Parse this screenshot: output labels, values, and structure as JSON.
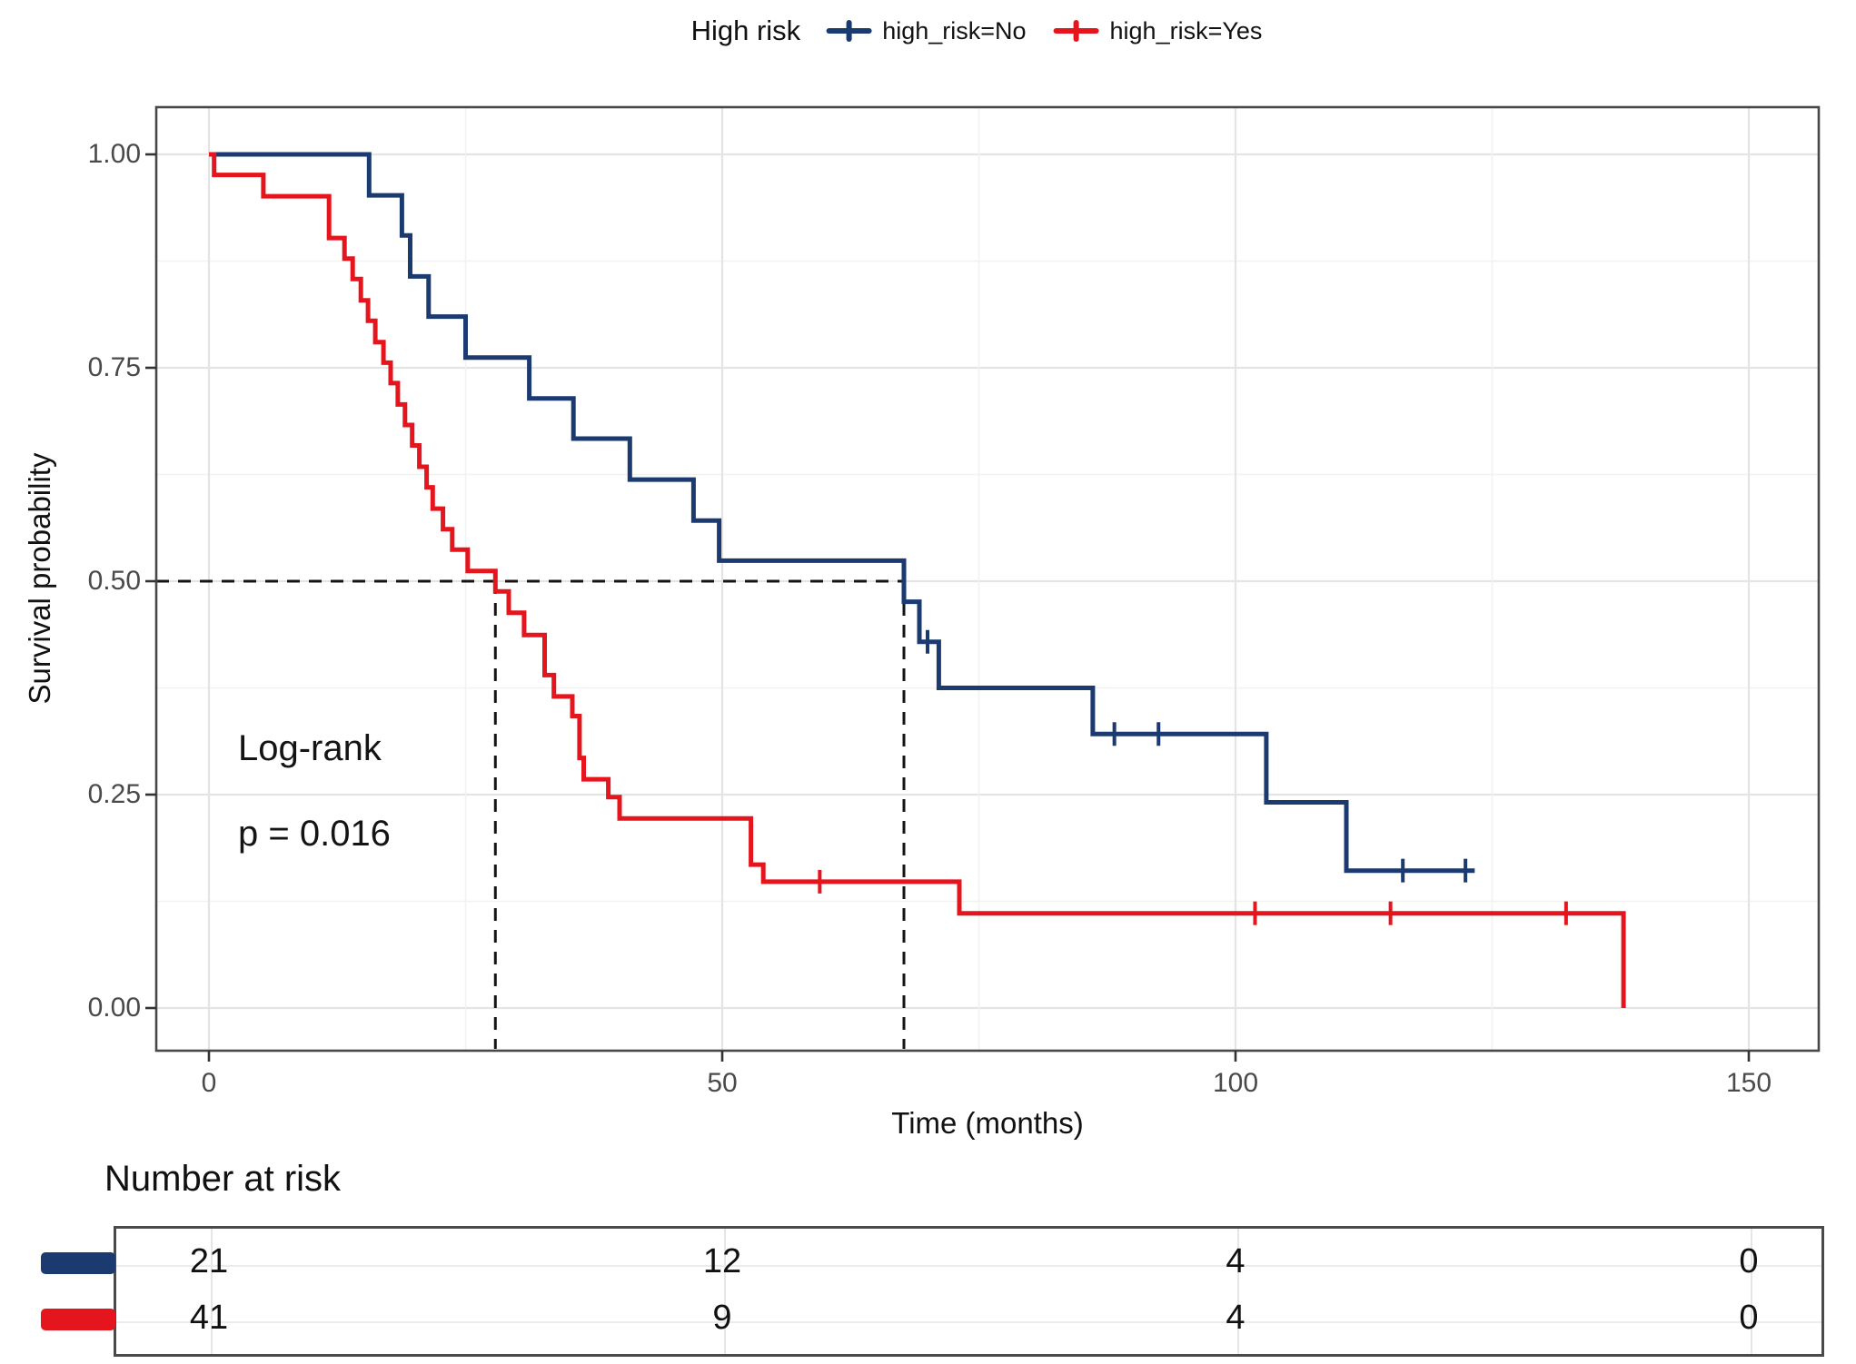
{
  "legend": {
    "title": "High risk",
    "entries": [
      {
        "label": "high_risk=No",
        "color": "#1a3a70"
      },
      {
        "label": "high_risk=Yes",
        "color": "#e4151d"
      }
    ]
  },
  "annotation": {
    "line1": "Log-rank",
    "line2": "p = 0.016"
  },
  "risk_table": {
    "title": "Number at risk",
    "time_points": [
      0,
      50,
      100,
      150
    ],
    "rows": [
      {
        "group": "high_risk=No",
        "color": "#1a3a70",
        "values": [
          "21",
          "12",
          "4",
          "0"
        ]
      },
      {
        "group": "high_risk=Yes",
        "color": "#e4151d",
        "values": [
          "41",
          "9",
          "4",
          "0"
        ]
      }
    ]
  },
  "chart_data": {
    "type": "line",
    "subtype": "kaplan-meier-step",
    "title": "High risk",
    "xlabel": "Time (months)",
    "ylabel": "Survival probability",
    "xlim": [
      0,
      150
    ],
    "ylim": [
      0,
      1
    ],
    "x_ticks": [
      0,
      50,
      100,
      150
    ],
    "y_ticks": [
      0,
      0.25,
      0.5,
      0.75,
      1
    ],
    "y_tick_labels": [
      "0.00",
      "0.25",
      "0.50",
      "0.75",
      "1.00"
    ],
    "grid": "major+minor",
    "legend_position": "top",
    "statistics": {
      "test": "Log-rank",
      "p_value": "0.016"
    },
    "median_lines": {
      "y": 0.5,
      "x_values": [
        27.9,
        67.7
      ],
      "style": "dashed"
    },
    "series": [
      {
        "name": "high_risk=No",
        "color": "#1a3a70",
        "n_at_start": 21,
        "steps": [
          [
            0,
            1.0
          ],
          [
            15.6,
            0.952
          ],
          [
            18.8,
            0.905
          ],
          [
            19.6,
            0.857
          ],
          [
            21.4,
            0.81
          ],
          [
            25,
            0.762
          ],
          [
            31.2,
            0.714
          ],
          [
            35.5,
            0.667
          ],
          [
            41,
            0.619
          ],
          [
            47.2,
            0.571
          ],
          [
            49.7,
            0.524
          ],
          [
            67.7,
            0.476
          ],
          [
            69.2,
            0.429
          ],
          [
            71.1,
            0.375
          ],
          [
            86.1,
            0.321
          ],
          [
            103,
            0.241
          ],
          [
            110.8,
            0.161
          ],
          [
            123.3,
            0.161
          ]
        ],
        "censor_marks": [
          [
            70,
            0.429
          ],
          [
            88.2,
            0.321
          ],
          [
            92.5,
            0.321
          ],
          [
            116.3,
            0.161
          ],
          [
            122.4,
            0.161
          ]
        ]
      },
      {
        "name": "high_risk=Yes",
        "color": "#e4151d",
        "n_at_start": 41,
        "steps": [
          [
            0,
            1.0
          ],
          [
            0.5,
            0.976
          ],
          [
            5.3,
            0.951
          ],
          [
            11.7,
            0.902
          ],
          [
            13.2,
            0.878
          ],
          [
            14,
            0.854
          ],
          [
            14.8,
            0.829
          ],
          [
            15.5,
            0.805
          ],
          [
            16.2,
            0.78
          ],
          [
            17,
            0.756
          ],
          [
            17.7,
            0.732
          ],
          [
            18.4,
            0.707
          ],
          [
            19.1,
            0.683
          ],
          [
            19.8,
            0.659
          ],
          [
            20.5,
            0.634
          ],
          [
            21.2,
            0.61
          ],
          [
            21.8,
            0.585
          ],
          [
            22.8,
            0.561
          ],
          [
            23.7,
            0.537
          ],
          [
            25.2,
            0.512
          ],
          [
            27.9,
            0.488
          ],
          [
            29.2,
            0.463
          ],
          [
            30.7,
            0.437
          ],
          [
            32.7,
            0.39
          ],
          [
            33.6,
            0.365
          ],
          [
            35.4,
            0.342
          ],
          [
            36.1,
            0.293
          ],
          [
            36.5,
            0.268
          ],
          [
            38.9,
            0.247
          ],
          [
            40,
            0.222
          ],
          [
            52.8,
            0.168
          ],
          [
            54,
            0.148
          ],
          [
            73.1,
            0.111
          ],
          [
            137.8,
            0.0
          ]
        ],
        "censor_marks": [
          [
            59.5,
            0.148
          ],
          [
            101.9,
            0.111
          ],
          [
            115.1,
            0.111
          ],
          [
            132.2,
            0.111
          ]
        ]
      }
    ]
  }
}
